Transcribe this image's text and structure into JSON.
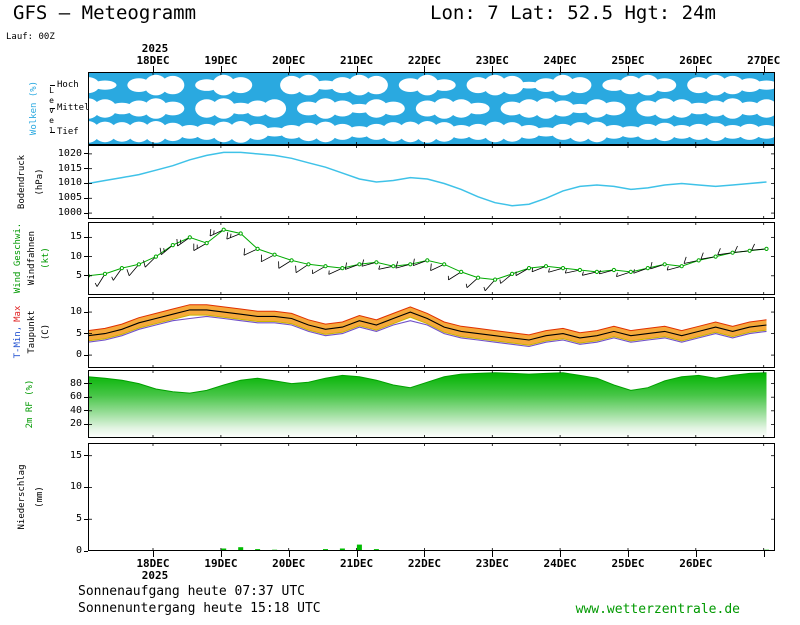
{
  "header": {
    "title_left": "GFS — Meteogramm",
    "title_right": "Lon: 7 Lat: 52.5 Hgt: 24m",
    "run_label": "Lauf: 00Z"
  },
  "time_axis": {
    "year_top": "2025",
    "year_bottom": "2025",
    "top_labels": [
      "18DEC",
      "19DEC",
      "20DEC",
      "21DEC",
      "22DEC",
      "23DEC",
      "24DEC",
      "25DEC",
      "26DEC",
      "27DEC"
    ],
    "bottom_labels": [
      "18DEC",
      "19DEC",
      "20DEC",
      "21DEC",
      "22DEC",
      "23DEC",
      "24DEC",
      "25DEC",
      "26DEC"
    ],
    "step_hours": 6
  },
  "panels": {
    "clouds": {
      "label": "Wolken (%)",
      "level_label": "Level",
      "rows": [
        "Hoch",
        "Mittel",
        "Tief"
      ]
    },
    "pressure": {
      "label": "Bodendruck",
      "unit": "(hPa)"
    },
    "wind": {
      "label_speed": "Wind Geschwi.",
      "label_barbs": "Windfahnen",
      "unit": "(kt)"
    },
    "temp": {
      "label_min": "T-Min,",
      "label_max": "Max",
      "label_dew": "Taupunkt",
      "unit": "(C)"
    },
    "rh": {
      "label": "2m RF (%)"
    },
    "precip": {
      "label": "Niederschlag",
      "unit": "(mm)"
    }
  },
  "footer": {
    "sunrise": "Sonnenaufgang heute 07:37 UTC",
    "sunset": "Sonnenuntergang heute 15:18 UTC",
    "website": "www.wetterzentrale.de"
  },
  "colors": {
    "cloud_bg": "#2aa9e0",
    "cloud": "#ffffff",
    "pressure_line": "#3fc2e8",
    "wind_line": "#00aa00",
    "barb": "#000000",
    "temp_band": "#f5a93b",
    "temp_max_edge": "#e03000",
    "temp_min_edge": "#c8b400",
    "temp_line": "#000000",
    "dew_line": "#7050c8",
    "rh_top": "#00b400",
    "rh_mid": "#9ade9a",
    "rh_bottom": "#ffffff",
    "precip_bar": "#00bb00",
    "website_green": "#009900",
    "label_blue": "#2aa9e0",
    "label_green": "#009900",
    "label_red": "#e02020",
    "label_tmin_blue": "#2050d0"
  },
  "chart_data": [
    {
      "name": "clouds",
      "type": "heatmap",
      "title": "Wolken (%)",
      "levels": [
        "Hoch",
        "Mittel",
        "Tief"
      ],
      "series": [
        {
          "name": "Hoch",
          "values": [
            70,
            40,
            0,
            60,
            90,
            80,
            0,
            50,
            90,
            70,
            0,
            0,
            80,
            90,
            40,
            70,
            90,
            80,
            0,
            60,
            90,
            50,
            0,
            70,
            90,
            80,
            30,
            60,
            90,
            70,
            0,
            50,
            80,
            90,
            60,
            0,
            70,
            90,
            80,
            60,
            40
          ]
        },
        {
          "name": "Mittel",
          "values": [
            90,
            80,
            50,
            70,
            90,
            60,
            0,
            80,
            90,
            50,
            70,
            80,
            0,
            60,
            90,
            70,
            40,
            80,
            60,
            0,
            70,
            90,
            80,
            50,
            0,
            60,
            80,
            90,
            70,
            40,
            80,
            60,
            0,
            70,
            90,
            80,
            50,
            70,
            90,
            60,
            80
          ]
        },
        {
          "name": "Tief",
          "values": [
            95,
            90,
            85,
            90,
            95,
            80,
            60,
            70,
            90,
            95,
            70,
            40,
            60,
            80,
            90,
            70,
            50,
            70,
            85,
            90,
            95,
            85,
            60,
            70,
            90,
            85,
            60,
            40,
            70,
            85,
            90,
            60,
            50,
            70,
            80,
            60,
            70,
            80,
            60,
            70,
            60
          ]
        }
      ]
    },
    {
      "name": "pressure",
      "type": "line",
      "ylabel": "Bodendruck (hPa)",
      "ylim": [
        998,
        1023
      ],
      "yticks": [
        1000,
        1005,
        1010,
        1015,
        1020
      ],
      "values": [
        1010,
        1011,
        1012,
        1013,
        1014.5,
        1016,
        1018,
        1019.5,
        1020.5,
        1020.5,
        1020,
        1019.5,
        1018.5,
        1017,
        1015.5,
        1013.5,
        1011.5,
        1010.5,
        1011,
        1012,
        1011.5,
        1010,
        1008,
        1005.5,
        1003.5,
        1002.5,
        1003,
        1005,
        1007.5,
        1009,
        1009.5,
        1009,
        1008,
        1008.5,
        1009.5,
        1010,
        1009.5,
        1009,
        1009.5,
        1010,
        1010.5
      ]
    },
    {
      "name": "wind",
      "type": "line",
      "ylabel": "Wind Geschwi. / Windfahnen (kt)",
      "ylim": [
        0,
        19
      ],
      "yticks": [
        5,
        10,
        15
      ],
      "values": [
        5,
        5.5,
        7,
        8,
        10,
        13,
        15,
        13.5,
        17,
        16,
        12,
        10.5,
        9,
        8,
        7.5,
        7,
        8,
        8.5,
        7.5,
        8,
        9,
        8,
        6,
        4.5,
        4,
        5.5,
        7,
        7.5,
        7,
        6.5,
        6,
        6.5,
        6,
        7,
        8,
        7.5,
        9,
        10,
        11,
        11.5,
        12
      ],
      "barb_directions_deg": [
        210,
        212,
        215,
        220,
        225,
        230,
        235,
        240,
        245,
        248,
        245,
        242,
        238,
        236,
        240,
        245,
        250,
        255,
        258,
        255,
        250,
        245,
        238,
        228,
        222,
        230,
        240,
        248,
        254,
        258,
        257,
        255,
        252,
        250,
        252,
        255,
        258,
        260,
        262,
        264,
        265
      ]
    },
    {
      "name": "temp",
      "type": "band+line",
      "ylabel": "T-Min, Max / Taupunkt (C)",
      "ylim": [
        -3,
        13.5
      ],
      "yticks": [
        0,
        5,
        10
      ],
      "series": [
        {
          "name": "T-Max",
          "values": [
            5.7,
            6.2,
            7.2,
            8.7,
            9.7,
            10.7,
            11.7,
            11.7,
            11.2,
            10.7,
            10.2,
            10.2,
            9.7,
            8.2,
            7.2,
            7.7,
            9.2,
            8.2,
            9.7,
            11.2,
            9.7,
            7.7,
            6.7,
            6.2,
            5.7,
            5.2,
            4.7,
            5.7,
            6.2,
            5.2,
            5.7,
            6.7,
            5.7,
            6.2,
            6.7,
            5.7,
            6.7,
            7.7,
            6.7,
            7.7,
            8.2
          ]
        },
        {
          "name": "T-Min",
          "values": [
            3.3,
            3.8,
            4.8,
            6.3,
            7.3,
            8.3,
            9.3,
            9.3,
            8.8,
            8.3,
            7.8,
            7.8,
            7.3,
            5.8,
            4.8,
            5.3,
            6.8,
            5.8,
            7.3,
            8.8,
            7.3,
            5.3,
            4.3,
            3.8,
            3.3,
            2.8,
            2.3,
            3.3,
            3.8,
            2.8,
            3.3,
            4.3,
            3.3,
            3.8,
            4.3,
            3.3,
            4.3,
            5.3,
            4.3,
            5.3,
            5.8
          ]
        },
        {
          "name": "T-2m",
          "values": [
            4.5,
            5,
            6,
            7.5,
            8.5,
            9.5,
            10.5,
            10.5,
            10,
            9.5,
            9,
            9,
            8.5,
            7,
            6,
            6.5,
            8,
            7,
            8.5,
            10,
            8.5,
            6.5,
            5.5,
            5,
            4.5,
            4,
            3.5,
            4.5,
            5,
            4,
            4.5,
            5.5,
            4.5,
            5,
            5.5,
            4.5,
            5.5,
            6.5,
            5.5,
            6.5,
            7
          ]
        },
        {
          "name": "Taupunkt",
          "values": [
            3,
            3.5,
            4.5,
            6,
            7,
            8,
            8.5,
            9,
            8.5,
            8,
            7.5,
            7.5,
            7,
            5.5,
            4.5,
            5,
            6.5,
            5.5,
            7,
            8,
            7,
            5,
            4,
            3.5,
            3,
            2.5,
            2,
            3,
            3.5,
            2.5,
            3,
            4,
            3,
            3.5,
            4,
            3,
            4,
            5,
            4,
            5,
            5.5
          ]
        }
      ]
    },
    {
      "name": "rh",
      "type": "area",
      "ylabel": "2m RF (%)",
      "ylim": [
        0,
        100
      ],
      "yticks": [
        20,
        40,
        60,
        80
      ],
      "values": [
        90,
        88,
        85,
        80,
        72,
        68,
        66,
        70,
        78,
        85,
        88,
        84,
        80,
        82,
        88,
        92,
        90,
        85,
        78,
        74,
        82,
        90,
        94,
        95,
        96,
        95,
        94,
        95,
        96,
        92,
        88,
        78,
        70,
        74,
        84,
        90,
        92,
        88,
        92,
        95,
        96
      ]
    },
    {
      "name": "precip",
      "type": "bar",
      "ylabel": "Niederschlag (mm)",
      "ylim": [
        0,
        17
      ],
      "yticks": [
        0,
        5,
        10,
        15
      ],
      "values": [
        0,
        0,
        0,
        0,
        0,
        0,
        0,
        0,
        0.4,
        0.6,
        0.3,
        0.2,
        0,
        0,
        0.3,
        0.4,
        1.0,
        0.3,
        0,
        0,
        0,
        0,
        0,
        0,
        0,
        0,
        0,
        0,
        0.15,
        0,
        0,
        0,
        0,
        0,
        0,
        0,
        0,
        0,
        0,
        0.1,
        0.2
      ]
    }
  ]
}
